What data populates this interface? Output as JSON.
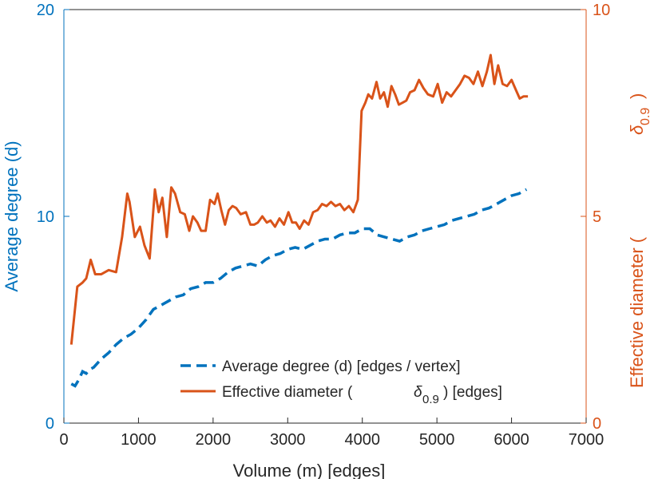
{
  "chart_data": {
    "type": "line",
    "xlabel": "Volume (m) [edges]",
    "ylabel_left": "Average degree (d)",
    "ylabel_right": "Effective diameter (",
    "ylabel_right_symbol": "δ",
    "ylabel_right_subscript": "0.9",
    "ylabel_right_close": ")",
    "xlim": [
      0,
      7000
    ],
    "ylim_left": [
      0,
      20
    ],
    "ylim_right": [
      0,
      10
    ],
    "xticks": [
      0,
      1000,
      2000,
      3000,
      4000,
      5000,
      6000,
      7000
    ],
    "yticks_left": [
      0,
      10,
      20
    ],
    "yticks_right": [
      0,
      5,
      10
    ],
    "legend_position": "bottom-right",
    "colors": {
      "left_axis": "#0072BD",
      "right_axis": "#D95319"
    },
    "series": [
      {
        "name": "Average degree (d) [edges / vertex]",
        "legend_label": "Average degree (d) [edges / vertex]",
        "axis": "left",
        "style": "dashed",
        "color": "#0072BD",
        "x": [
          100,
          150,
          200,
          250,
          300,
          350,
          400,
          500,
          600,
          700,
          800,
          900,
          1000,
          1100,
          1200,
          1300,
          1400,
          1500,
          1600,
          1700,
          1800,
          1900,
          2000,
          2100,
          2200,
          2300,
          2400,
          2500,
          2600,
          2700,
          2800,
          2900,
          3000,
          3100,
          3200,
          3300,
          3400,
          3500,
          3600,
          3700,
          3800,
          3900,
          4000,
          4100,
          4200,
          4300,
          4400,
          4500,
          4600,
          4700,
          4800,
          4900,
          5000,
          5100,
          5200,
          5300,
          5400,
          5500,
          5600,
          5700,
          5800,
          5900,
          6000,
          6100,
          6200
        ],
        "values": [
          1.9,
          1.8,
          2.1,
          2.5,
          2.4,
          2.6,
          2.7,
          3.1,
          3.4,
          3.8,
          4.1,
          4.3,
          4.6,
          5.0,
          5.5,
          5.7,
          5.9,
          6.1,
          6.2,
          6.5,
          6.6,
          6.8,
          6.8,
          7.0,
          7.3,
          7.5,
          7.6,
          7.7,
          7.6,
          7.9,
          8.1,
          8.2,
          8.4,
          8.5,
          8.4,
          8.6,
          8.8,
          8.9,
          8.9,
          9.1,
          9.2,
          9.2,
          9.4,
          9.4,
          9.1,
          9.0,
          8.9,
          8.8,
          9.0,
          9.1,
          9.3,
          9.4,
          9.5,
          9.6,
          9.8,
          9.9,
          10.0,
          10.1,
          10.3,
          10.4,
          10.6,
          10.8,
          11.0,
          11.1,
          11.3
        ]
      },
      {
        "name": "Effective diameter (δ0.9) [edges]",
        "legend_label_pre": "Effective diameter (",
        "legend_symbol": "δ",
        "legend_subscript": "0.9",
        "legend_label_post": ") [edges]",
        "axis": "right",
        "style": "solid",
        "color": "#D95319",
        "x": [
          100,
          180,
          250,
          300,
          360,
          420,
          500,
          600,
          700,
          780,
          850,
          880,
          950,
          1020,
          1080,
          1150,
          1220,
          1270,
          1320,
          1380,
          1440,
          1490,
          1560,
          1620,
          1680,
          1730,
          1790,
          1840,
          1900,
          1960,
          2020,
          2060,
          2110,
          2160,
          2210,
          2260,
          2310,
          2370,
          2440,
          2500,
          2550,
          2600,
          2660,
          2720,
          2770,
          2830,
          2890,
          2950,
          3010,
          3060,
          3110,
          3160,
          3220,
          3280,
          3340,
          3400,
          3460,
          3520,
          3580,
          3640,
          3700,
          3760,
          3820,
          3880,
          3940,
          3990,
          4040,
          4080,
          4130,
          4190,
          4240,
          4290,
          4340,
          4390,
          4440,
          4490,
          4540,
          4590,
          4640,
          4700,
          4760,
          4820,
          4880,
          4950,
          5010,
          5070,
          5130,
          5190,
          5250,
          5310,
          5370,
          5430,
          5490,
          5550,
          5610,
          5670,
          5720,
          5770,
          5820,
          5880,
          5940,
          6000,
          6060,
          6110,
          6160,
          6220
        ],
        "values": [
          1.9,
          3.3,
          3.4,
          3.5,
          3.95,
          3.6,
          3.6,
          3.7,
          3.65,
          4.5,
          5.55,
          5.35,
          4.5,
          4.75,
          4.3,
          3.98,
          5.65,
          5.1,
          5.45,
          4.5,
          5.7,
          5.55,
          5.1,
          5.05,
          4.65,
          5.0,
          4.85,
          4.65,
          4.65,
          5.4,
          5.3,
          5.55,
          5.15,
          4.8,
          5.15,
          5.25,
          5.2,
          5.05,
          5.1,
          4.8,
          4.8,
          4.85,
          5.0,
          4.85,
          4.9,
          4.75,
          4.95,
          4.8,
          5.1,
          4.85,
          4.85,
          4.7,
          4.9,
          4.8,
          5.1,
          5.15,
          5.3,
          5.25,
          5.35,
          5.25,
          5.3,
          5.15,
          5.25,
          5.1,
          5.4,
          7.55,
          7.75,
          7.95,
          7.85,
          8.25,
          7.85,
          8.0,
          7.65,
          8.15,
          7.95,
          7.7,
          7.75,
          7.8,
          8.0,
          8.05,
          8.3,
          8.1,
          7.95,
          7.9,
          8.2,
          7.75,
          8.0,
          7.9,
          8.05,
          8.2,
          8.4,
          8.35,
          8.2,
          8.5,
          8.15,
          8.5,
          8.9,
          8.2,
          8.65,
          8.2,
          8.15,
          8.3,
          8.05,
          7.85,
          7.9,
          7.9
        ]
      }
    ]
  }
}
